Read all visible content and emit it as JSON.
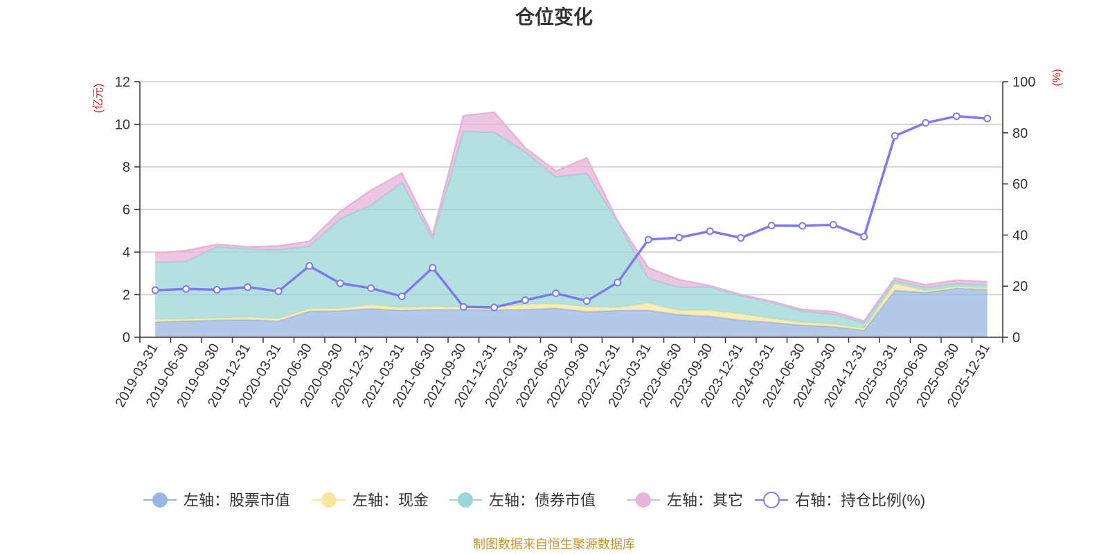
{
  "chart_data": {
    "type": "area",
    "title": "仓位变化",
    "left_unit": "(亿元)",
    "right_unit": "(%)",
    "left_ylim": [
      0,
      12
    ],
    "left_ticks": [
      "0",
      "2",
      "4",
      "6",
      "8",
      "10",
      "12"
    ],
    "right_ylim": [
      0,
      100
    ],
    "right_ticks": [
      "0",
      "20",
      "40",
      "60",
      "80",
      "100"
    ],
    "categories": [
      "2019-03-31",
      "2019-06-30",
      "2019-09-30",
      "2019-12-31",
      "2020-03-31",
      "2020-06-30",
      "2020-09-30",
      "2020-12-31",
      "2021-03-31",
      "2021-06-30",
      "2021-09-30",
      "2021-12-31",
      "2022-03-31",
      "2022-06-30",
      "2022-09-30",
      "2022-12-31",
      "2023-03-31",
      "2023-06-30",
      "2023-09-30",
      "2023-12-31",
      "2024-03-31",
      "2024-06-30",
      "2024-09-30",
      "2024-12-31",
      "2025-03-31",
      "2025-06-30",
      "2025-09-30",
      "2025-12-31"
    ],
    "stacked_series": [
      {
        "name": "左轴：股票市值",
        "color": "#9bb6e0",
        "values": [
          0.72,
          0.76,
          0.8,
          0.82,
          0.76,
          1.22,
          1.24,
          1.34,
          1.26,
          1.3,
          1.3,
          1.28,
          1.3,
          1.36,
          1.2,
          1.26,
          1.26,
          1.06,
          0.98,
          0.8,
          0.7,
          0.56,
          0.5,
          0.32,
          2.2,
          2.1,
          2.3,
          2.24
        ]
      },
      {
        "name": "左轴：现金",
        "color": "#f7e5a0",
        "values": [
          0.12,
          0.1,
          0.1,
          0.12,
          0.12,
          0.12,
          0.12,
          0.18,
          0.14,
          0.14,
          0.12,
          0.12,
          0.24,
          0.22,
          0.24,
          0.14,
          0.34,
          0.2,
          0.28,
          0.3,
          0.18,
          0.14,
          0.12,
          0.1,
          0.32,
          0.08,
          0.08,
          0.08
        ]
      },
      {
        "name": "左轴：债券市值",
        "color": "#9bd7d6",
        "values": [
          2.68,
          2.7,
          3.34,
          3.2,
          3.22,
          2.94,
          4.2,
          4.68,
          5.86,
          3.2,
          8.24,
          8.22,
          7.16,
          5.94,
          6.26,
          4.04,
          1.16,
          1.08,
          1.1,
          0.84,
          0.76,
          0.52,
          0.46,
          0.26,
          0.14,
          0.14,
          0.14,
          0.14
        ]
      },
      {
        "name": "左轴：其它",
        "color": "#e7b4d8",
        "values": [
          0.44,
          0.5,
          0.12,
          0.1,
          0.18,
          0.22,
          0.34,
          0.7,
          0.44,
          0.16,
          0.74,
          0.94,
          0.2,
          0.28,
          0.72,
          0.02,
          0.5,
          0.36,
          0.06,
          0.06,
          0.04,
          0.08,
          0.12,
          0.08,
          0.12,
          0.14,
          0.16,
          0.14
        ]
      }
    ],
    "line_series": {
      "name": "右轴：持仓比例(%)",
      "color": "#7b7bef",
      "values": [
        18.4,
        18.9,
        18.6,
        19.6,
        18.0,
        27.9,
        21.1,
        19.2,
        16.0,
        27.2,
        11.9,
        11.7,
        14.5,
        17.2,
        14.2,
        21.4,
        38.2,
        39.0,
        41.5,
        38.9,
        43.7,
        43.6,
        44.0,
        39.4,
        78.8,
        83.9,
        86.5,
        85.6
      ]
    },
    "source": "制图数据来自恒生聚源数据库"
  }
}
